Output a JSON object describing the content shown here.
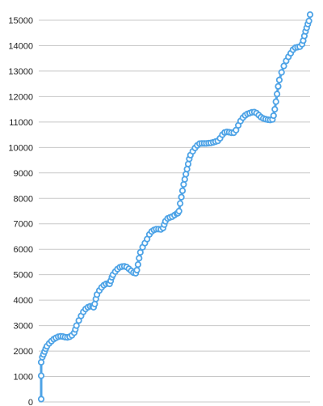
{
  "chart_data": {
    "type": "line",
    "title": "",
    "xlabel": "",
    "ylabel": "",
    "ylim": [
      0,
      15000
    ],
    "y_ticks": [
      "0",
      "1000",
      "2000",
      "3000",
      "4000",
      "5000",
      "6000",
      "7000",
      "8000",
      "9000",
      "10000",
      "11000",
      "12000",
      "13000",
      "14000",
      "15000"
    ],
    "grid": true,
    "x_tick_labels": false,
    "marker": "hollow-circle",
    "series": [
      {
        "color": "#4ea3e6",
        "points": [
          [
            1,
            110
          ],
          [
            1,
            1030
          ],
          [
            1,
            1560
          ],
          [
            2,
            1760
          ],
          [
            3,
            1870
          ],
          [
            4,
            1980
          ],
          [
            5,
            2090
          ],
          [
            6,
            2190
          ],
          [
            8,
            2300
          ],
          [
            10,
            2390
          ],
          [
            12,
            2470
          ],
          [
            14,
            2520
          ],
          [
            16,
            2560
          ],
          [
            18,
            2580
          ],
          [
            20,
            2570
          ],
          [
            22,
            2550
          ],
          [
            24,
            2540
          ],
          [
            26,
            2560
          ],
          [
            28,
            2620
          ],
          [
            30,
            2720
          ],
          [
            31,
            2850
          ],
          [
            32,
            3000
          ],
          [
            34,
            3200
          ],
          [
            36,
            3380
          ],
          [
            38,
            3540
          ],
          [
            40,
            3650
          ],
          [
            42,
            3720
          ],
          [
            44,
            3760
          ],
          [
            46,
            3760
          ],
          [
            47,
            3720
          ],
          [
            48,
            3850
          ],
          [
            49,
            4050
          ],
          [
            50,
            4220
          ],
          [
            52,
            4380
          ],
          [
            54,
            4500
          ],
          [
            56,
            4590
          ],
          [
            58,
            4640
          ],
          [
            60,
            4660
          ],
          [
            61,
            4640
          ],
          [
            62,
            4760
          ],
          [
            63,
            4900
          ],
          [
            64,
            5000
          ],
          [
            66,
            5120
          ],
          [
            68,
            5220
          ],
          [
            70,
            5290
          ],
          [
            72,
            5320
          ],
          [
            74,
            5330
          ],
          [
            76,
            5300
          ],
          [
            78,
            5230
          ],
          [
            80,
            5150
          ],
          [
            82,
            5080
          ],
          [
            84,
            5060
          ],
          [
            85,
            5180
          ],
          [
            86,
            5400
          ],
          [
            87,
            5650
          ],
          [
            88,
            5880
          ],
          [
            90,
            6080
          ],
          [
            92,
            6240
          ],
          [
            94,
            6400
          ],
          [
            96,
            6580
          ],
          [
            98,
            6700
          ],
          [
            100,
            6760
          ],
          [
            102,
            6790
          ],
          [
            104,
            6790
          ],
          [
            106,
            6780
          ],
          [
            108,
            6840
          ],
          [
            109,
            6970
          ],
          [
            110,
            7100
          ],
          [
            112,
            7210
          ],
          [
            114,
            7250
          ],
          [
            116,
            7280
          ],
          [
            118,
            7340
          ],
          [
            120,
            7400
          ],
          [
            121,
            7420
          ],
          [
            122,
            7500
          ],
          [
            123,
            7800
          ],
          [
            124,
            8050
          ],
          [
            125,
            8300
          ],
          [
            126,
            8550
          ],
          [
            127,
            8750
          ],
          [
            128,
            8950
          ],
          [
            129,
            9150
          ],
          [
            130,
            9350
          ],
          [
            131,
            9550
          ],
          [
            132,
            9700
          ],
          [
            134,
            9850
          ],
          [
            136,
            9980
          ],
          [
            138,
            10080
          ],
          [
            140,
            10150
          ],
          [
            142,
            10160
          ],
          [
            144,
            10160
          ],
          [
            146,
            10160
          ],
          [
            148,
            10170
          ],
          [
            150,
            10180
          ],
          [
            152,
            10200
          ],
          [
            154,
            10230
          ],
          [
            156,
            10260
          ],
          [
            158,
            10360
          ],
          [
            160,
            10500
          ],
          [
            162,
            10590
          ],
          [
            164,
            10610
          ],
          [
            166,
            10600
          ],
          [
            168,
            10580
          ],
          [
            170,
            10580
          ],
          [
            172,
            10680
          ],
          [
            174,
            10870
          ],
          [
            176,
            11040
          ],
          [
            178,
            11170
          ],
          [
            180,
            11260
          ],
          [
            182,
            11320
          ],
          [
            184,
            11350
          ],
          [
            186,
            11380
          ],
          [
            188,
            11390
          ],
          [
            190,
            11350
          ],
          [
            192,
            11270
          ],
          [
            194,
            11190
          ],
          [
            196,
            11140
          ],
          [
            198,
            11110
          ],
          [
            200,
            11090
          ],
          [
            202,
            11080
          ],
          [
            204,
            11100
          ],
          [
            205,
            11250
          ],
          [
            206,
            11500
          ],
          [
            207,
            11800
          ],
          [
            208,
            12100
          ],
          [
            209,
            12400
          ],
          [
            210,
            12650
          ],
          [
            212,
            12950
          ],
          [
            214,
            13200
          ],
          [
            216,
            13400
          ],
          [
            218,
            13560
          ],
          [
            220,
            13700
          ],
          [
            222,
            13840
          ],
          [
            224,
            13920
          ],
          [
            226,
            13940
          ],
          [
            228,
            13960
          ],
          [
            230,
            14060
          ],
          [
            231,
            14200
          ],
          [
            232,
            14380
          ],
          [
            233,
            14560
          ],
          [
            234,
            14700
          ],
          [
            235,
            14850
          ],
          [
            236,
            14970
          ],
          [
            237,
            15220
          ]
        ]
      }
    ]
  }
}
